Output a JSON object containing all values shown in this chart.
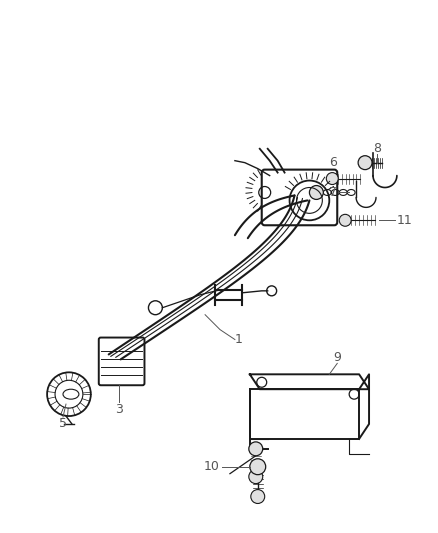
{
  "background_color": "#ffffff",
  "line_color": "#1a1a1a",
  "label_color": "#555555",
  "fig_width": 4.39,
  "fig_height": 5.33,
  "dpi": 100
}
